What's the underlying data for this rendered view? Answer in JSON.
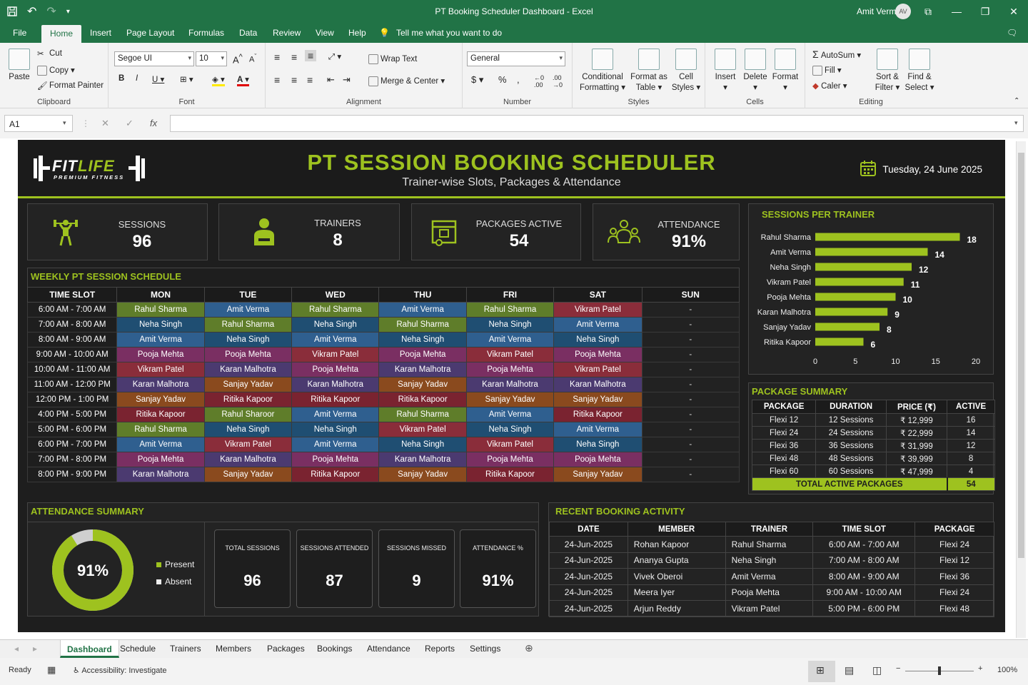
{
  "window": {
    "title": "PT Booking Scheduler Dashboard  -  Excel",
    "user": "Amit Verma",
    "avatar": "AV"
  },
  "menu": [
    "File",
    "Home",
    "Insert",
    "Page Layout",
    "Formulas",
    "Data",
    "Review",
    "View",
    "Help"
  ],
  "tell_me": "Tell me what you want to do",
  "ribbon": {
    "clipboard": {
      "paste": "Paste",
      "cut": "Cut",
      "copy": "Copy",
      "painter": "Format Painter",
      "label": "Clipboard"
    },
    "font": {
      "name": "Segoe UI",
      "size": "10",
      "label": "Font"
    },
    "alignment": {
      "wrap": "Wrap Text",
      "merge": "Merge & Center",
      "label": "Alignment"
    },
    "number": {
      "format": "General",
      "label": "Number"
    },
    "styles": {
      "cond1": "Conditional",
      "cond2": "Formatting",
      "fmt1": "Format as",
      "fmt2": "Table",
      "cell1": "Cell",
      "cell2": "Styles",
      "label": "Styles"
    },
    "cells": {
      "insert": "Insert",
      "delete": "Delete",
      "format": "Format",
      "label": "Cells"
    },
    "editing": {
      "autosum": "AutoSum",
      "fill": "Fill",
      "clear": "Caler",
      "sort1": "Sort &",
      "sort2": "Filter",
      "find1": "Find &",
      "find2": "Select",
      "label": "Editing"
    }
  },
  "formula_bar": {
    "name_box": "A1",
    "fx": "fx",
    "value": ""
  },
  "dashboard": {
    "logo_a": "FIT",
    "logo_b": "LIFE",
    "logo_sub": "PREMIUM FITNESS",
    "title": "PT SESSION BOOKING SCHEDULER",
    "subtitle": "Trainer-wise Slots, Packages & Attendance",
    "date": "Tuesday, 24 June 2025",
    "kpis": [
      {
        "label": "SESSIONS",
        "value": "96",
        "icon": "weightlifter-icon"
      },
      {
        "label": "TRAINERS",
        "value": "8",
        "icon": "trainer-icon"
      },
      {
        "label": "PACKAGES ACTIVE",
        "value": "54",
        "icon": "package-icon"
      },
      {
        "label": "ATTENDANCE",
        "value": "91%",
        "icon": "group-icon"
      }
    ],
    "schedule": {
      "title": "WEEKLY PT SESSION SCHEDULE",
      "headers": [
        "TIME SLOT",
        "MON",
        "TUE",
        "WED",
        "THU",
        "FRI",
        "SAT",
        "SUN"
      ],
      "rows": [
        [
          "6:00 AM - 7:00 AM",
          "Rahul Sharma",
          "Amit Verma",
          "Rahul Sharma",
          "Amit Verma",
          "Rahul Sharma",
          "Vikram Patel",
          "-"
        ],
        [
          "7:00 AM - 8:00 AM",
          "Neha Singh",
          "Rahul Sharma",
          "Neha Singh",
          "Rahul Sharma",
          "Neha Singh",
          "Amit Verma",
          "-"
        ],
        [
          "8:00 AM - 9:00 AM",
          "Amit Verma",
          "Neha Singh",
          "Amit Verma",
          "Neha Singh",
          "Amit Verma",
          "Neha Singh",
          "-"
        ],
        [
          "9:00 AM - 10:00 AM",
          "Pooja Mehta",
          "Pooja Mehta",
          "Vikram Patel",
          "Pooja Mehta",
          "Vikram Patel",
          "Pooja Mehta",
          "-"
        ],
        [
          "10:00 AM - 11:00 AM",
          "Vikram Patel",
          "Karan Malhotra",
          "Pooja Mehta",
          "Karan Malhotra",
          "Pooja Mehta",
          "Vikram Patel",
          "-"
        ],
        [
          "11:00 AM - 12:00 PM",
          "Karan Malhotra",
          "Sanjay Yadav",
          "Karan Malhotra",
          "Sanjay Yadav",
          "Karan Malhotra",
          "Karan Malhotra",
          "-"
        ],
        [
          "12:00 PM - 1:00 PM",
          "Sanjay Yadav",
          "Ritika Kapoor",
          "Ritika Kapoor",
          "Ritika Kapoor",
          "Sanjay Yadav",
          "Sanjay Yadav",
          "-"
        ],
        [
          "4:00 PM - 5:00 PM",
          "Ritika Kapoor",
          "Rahul Sharoor",
          "Amit Verma",
          "Rahul Sharma",
          "Amit Verma",
          "Ritika Kapoor",
          "-"
        ],
        [
          "5:00 PM - 6:00 PM",
          "Rahul Sharma",
          "Neha Singh",
          "Neha Singh",
          "Vikram Patel",
          "Neha Singh",
          "Amit Verma",
          "-"
        ],
        [
          "6:00 PM - 7:00 PM",
          "Amit Verma",
          "Vikram Patel",
          "Amit Verma",
          "Neha Singh",
          "Vikram Patel",
          "Neha Singh",
          "-"
        ],
        [
          "7:00 PM - 8:00 PM",
          "Pooja Mehta",
          "Karan Malhotra",
          "Pooja Mehta",
          "Karan Malhotra",
          "Pooja Mehta",
          "Pooja Mehta",
          "-"
        ],
        [
          "8:00 PM - 9:00 PM",
          "Karan Malhotra",
          "Sanjay Yadav",
          "Ritika Kapoor",
          "Sanjay Yadav",
          "Ritika Kapoor",
          "Sanjay Yadav",
          "-"
        ]
      ]
    },
    "trainer_colors": {
      "Rahul Sharma": "#5f7d2a",
      "Rahul Sharoor": "#5f7d2a",
      "Amit Verma": "#2f5f8f",
      "Neha Singh": "#1f4e72",
      "Pooja Mehta": "#7a2f62",
      "Vikram Patel": "#8a2d3a",
      "Karan Malhotra": "#4b3a70",
      "Sanjay Yadav": "#8a4a1e",
      "Ritika Kapoor": "#7a2330"
    },
    "package_summary": {
      "title": "PACKAGE SUMMARY",
      "headers": [
        "PACKAGE",
        "DURATION",
        "PRICE (₹)",
        "ACTIVE"
      ],
      "rows": [
        [
          "Flexi 12",
          "12 Sessions",
          "₹ 12,999",
          "16"
        ],
        [
          "Flexi 24",
          "24 Sessions",
          "₹ 22,999",
          "14"
        ],
        [
          "Flexi 36",
          "36 Sessions",
          "₹ 31,999",
          "12"
        ],
        [
          "Flexi 48",
          "48 Sessions",
          "₹ 39,999",
          "8"
        ],
        [
          "Flexi 60",
          "60 Sessions",
          "₹ 47,999",
          "4"
        ]
      ],
      "total_label": "TOTAL ACTIVE PACKAGES",
      "total_value": "54"
    },
    "attendance": {
      "title": "ATTENDANCE SUMMARY",
      "donut_label": "91%",
      "present_fraction": 0.91,
      "legend_present": "Present",
      "legend_absent": "Absent",
      "cards": [
        {
          "label": "TOTAL SESSIONS",
          "value": "96"
        },
        {
          "label": "SESSIONS ATTENDED",
          "value": "87"
        },
        {
          "label": "SESSIONS MISSED",
          "value": "9"
        },
        {
          "label": "ATTENDANCE %",
          "value": "91%"
        }
      ]
    },
    "recent": {
      "title": "RECENT BOOKING ACTIVITY",
      "headers": [
        "DATE",
        "MEMBER",
        "TRAINER",
        "TIME SLOT",
        "PACKAGE"
      ],
      "rows": [
        [
          "24-Jun-2025",
          "Rohan Kapoor",
          "Rahul Sharma",
          "6:00 AM - 7:00 AM",
          "Flexi 24"
        ],
        [
          "24-Jun-2025",
          "Ananya Gupta",
          "Neha Singh",
          "7:00 AM - 8:00 AM",
          "Flexi 12"
        ],
        [
          "24-Jun-2025",
          "Vivek Oberoi",
          "Amit Verma",
          "8:00 AM - 9:00 AM",
          "Flexi 36"
        ],
        [
          "24-Jun-2025",
          "Meera Iyer",
          "Pooja Mehta",
          "9:00 AM - 10:00 AM",
          "Flexi 24"
        ],
        [
          "24-Jun-2025",
          "Arjun Reddy",
          "Vikram Patel",
          "5:00 PM - 6:00 PM",
          "Flexi 48"
        ]
      ]
    }
  },
  "chart_data": {
    "type": "bar",
    "orientation": "horizontal",
    "title": "SESSIONS PER TRAINER",
    "categories": [
      "Rahul Sharma",
      "Amit Verma",
      "Neha Singh",
      "Vikram Patel",
      "Pooja Mehta",
      "Karan Malhotra",
      "Sanjay Yadav",
      "Ritika Kapoor"
    ],
    "values": [
      18,
      14,
      12,
      11,
      10,
      9,
      8,
      6
    ],
    "xlim": [
      0,
      20
    ],
    "xticks": [
      0,
      5,
      10,
      15,
      20
    ],
    "bar_color": "#9ec21f",
    "grid": false,
    "legend": "none"
  },
  "sheet_tabs": [
    "Dashboard",
    "Schedule",
    "Trainers",
    "Members",
    "Packages",
    "Bookings",
    "Attendance",
    "Reports",
    "Settings"
  ],
  "status": {
    "ready": "Ready",
    "accessibility": "Accessibility: Investigate",
    "zoom": "100%"
  }
}
